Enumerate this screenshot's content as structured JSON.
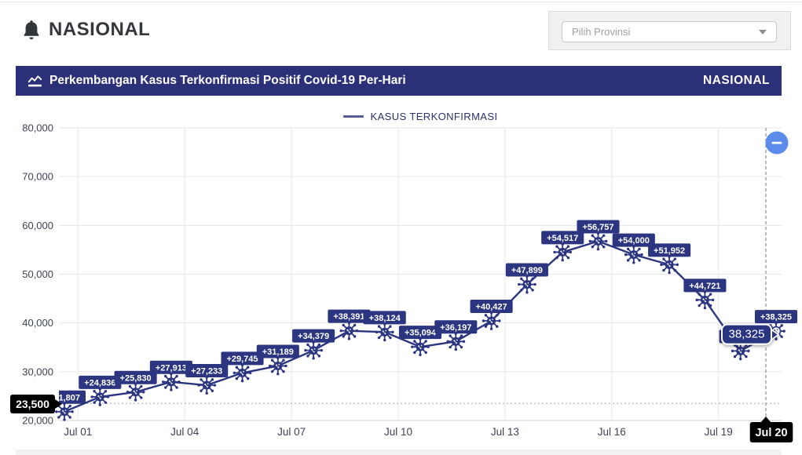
{
  "page": {
    "header_title": "NASIONAL"
  },
  "province_select": {
    "placeholder": "Pilih Provinsi"
  },
  "banner": {
    "title": "Perkembangan Kasus Terkonfirmasi Positif Covid-19 Per-Hari",
    "region_label": "NASIONAL"
  },
  "legend": {
    "label": "KASUS TERKONFIRMASI"
  },
  "zoom_button": {
    "glyph": "minus"
  },
  "colors": {
    "banner_navy": "#2b3078",
    "series_navy": "#2c3580",
    "legend_line": "#565b9b",
    "crosshair_label_bg": "#000000",
    "zoom_button_blue": "#5b8ceb",
    "grid": "#e7e7e7",
    "axis_text": "#3d4353"
  },
  "chart_data": {
    "type": "line",
    "title": "Perkembangan Kasus Terkonfirmasi Positif Covid-19 Per-Hari",
    "xlabel": "",
    "ylabel": "",
    "grid": true,
    "legend_position": "top-center",
    "marker": "virus-icon",
    "series": [
      {
        "name": "KASUS TERKONFIRMASI",
        "color": "#2c3580",
        "x": [
          "Jun 30",
          "Jul 01",
          "Jul 02",
          "Jul 03",
          "Jul 04",
          "Jul 05",
          "Jul 06",
          "Jul 07",
          "Jul 08",
          "Jul 09",
          "Jul 10",
          "Jul 11",
          "Jul 12",
          "Jul 13",
          "Jul 14",
          "Jul 15",
          "Jul 16",
          "Jul 17",
          "Jul 18",
          "Jul 19",
          "Jul 20"
        ],
        "values": [
          21807,
          24836,
          25830,
          27913,
          27233,
          29745,
          31189,
          34379,
          38391,
          38124,
          35094,
          36197,
          40427,
          47899,
          54517,
          56757,
          54000,
          51952,
          44721,
          34257,
          38325
        ],
        "data_label_prefix": "+"
      }
    ],
    "x_axis": {
      "tick_labels": [
        "Jul 01",
        "Jul 04",
        "Jul 07",
        "Jul 10",
        "Jul 13",
        "Jul 16",
        "Jul 19"
      ],
      "tick_indices": [
        1,
        4,
        7,
        10,
        13,
        16,
        19
      ]
    },
    "y_axis": {
      "ticks": [
        20000,
        30000,
        40000,
        50000,
        60000,
        70000,
        80000
      ],
      "range": [
        20000,
        80000
      ],
      "tick_format": "thousands-comma"
    },
    "crosshair": {
      "x_label": "Jul 20",
      "y_label": "23,500",
      "hovered_index": 20
    },
    "tooltip": {
      "text": "38,325",
      "for_x": "Jul 20"
    }
  }
}
